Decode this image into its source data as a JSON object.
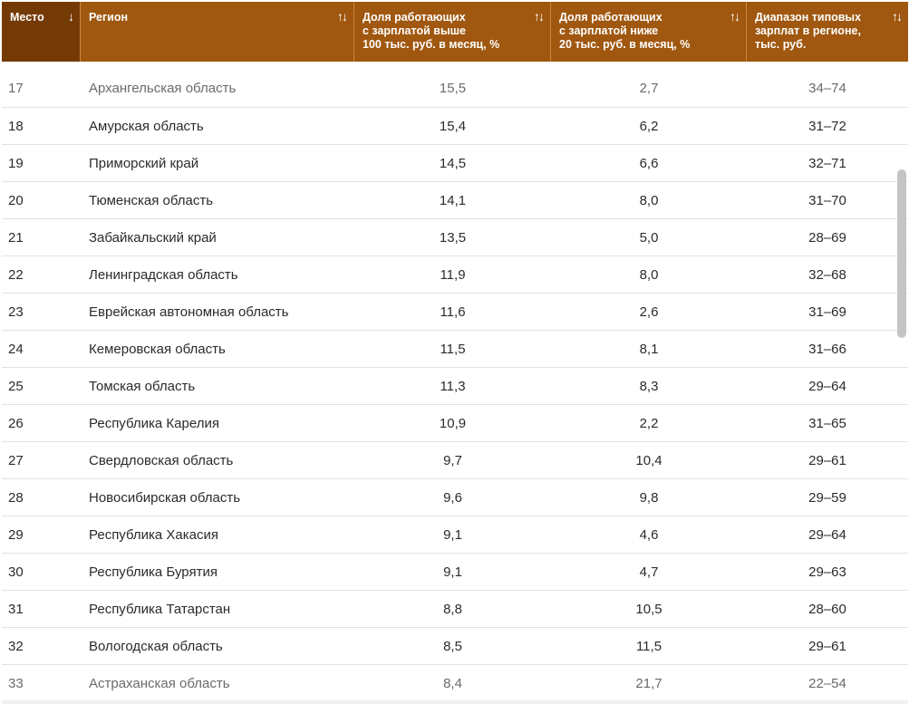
{
  "header": {
    "col_rank": "Место",
    "col_rank_sort": "↓",
    "col_region": "Регион",
    "col_share_high_1": "Доля работающих",
    "col_share_high_2": "с зарплатой выше",
    "col_share_high_3": "100 тыс. руб. в месяц, %",
    "col_share_low_1": "Доля работающих",
    "col_share_low_2": "с зарплатой ниже",
    "col_share_low_3": "20 тыс. руб. в месяц, %",
    "col_range_1": "Диапазон типовых",
    "col_range_2": "зарплат в регионе,",
    "col_range_3": "тыс. руб.",
    "sort_both": "↑↓"
  },
  "colors": {
    "header_bg": "#a0570f",
    "header_sorted_bg": "#743a06"
  },
  "rows": [
    {
      "rank": "17",
      "region": "Архангельская область",
      "high": "15,5",
      "low": "2,7",
      "range": "34–74"
    },
    {
      "rank": "18",
      "region": "Амурская область",
      "high": "15,4",
      "low": "6,2",
      "range": "31–72"
    },
    {
      "rank": "19",
      "region": "Приморский край",
      "high": "14,5",
      "low": "6,6",
      "range": "32–71"
    },
    {
      "rank": "20",
      "region": "Тюменская область",
      "high": "14,1",
      "low": "8,0",
      "range": "31–70"
    },
    {
      "rank": "21",
      "region": "Забайкальский край",
      "high": "13,5",
      "low": "5,0",
      "range": "28–69"
    },
    {
      "rank": "22",
      "region": "Ленинградская область",
      "high": "11,9",
      "low": "8,0",
      "range": "32–68"
    },
    {
      "rank": "23",
      "region": "Еврейская автономная область",
      "high": "11,6",
      "low": "2,6",
      "range": "31–69"
    },
    {
      "rank": "24",
      "region": "Кемеровская область",
      "high": "11,5",
      "low": "8,1",
      "range": "31–66"
    },
    {
      "rank": "25",
      "region": "Томская область",
      "high": "11,3",
      "low": "8,3",
      "range": "29–64"
    },
    {
      "rank": "26",
      "region": "Республика Карелия",
      "high": "10,9",
      "low": "2,2",
      "range": "31–65"
    },
    {
      "rank": "27",
      "region": "Свердловская область",
      "high": "9,7",
      "low": "10,4",
      "range": "29–61"
    },
    {
      "rank": "28",
      "region": "Новосибирская область",
      "high": "9,6",
      "low": "9,8",
      "range": "29–59"
    },
    {
      "rank": "29",
      "region": "Республика Хакасия",
      "high": "9,1",
      "low": "4,6",
      "range": "29–64"
    },
    {
      "rank": "30",
      "region": "Республика Бурятия",
      "high": "9,1",
      "low": "4,7",
      "range": "29–63"
    },
    {
      "rank": "31",
      "region": "Республика Татарстан",
      "high": "8,8",
      "low": "10,5",
      "range": "28–60"
    },
    {
      "rank": "32",
      "region": "Вологодская область",
      "high": "8,5",
      "low": "11,5",
      "range": "29–61"
    },
    {
      "rank": "33",
      "region": "Астраханская область",
      "high": "8,4",
      "low": "21,7",
      "range": "22–54"
    }
  ]
}
